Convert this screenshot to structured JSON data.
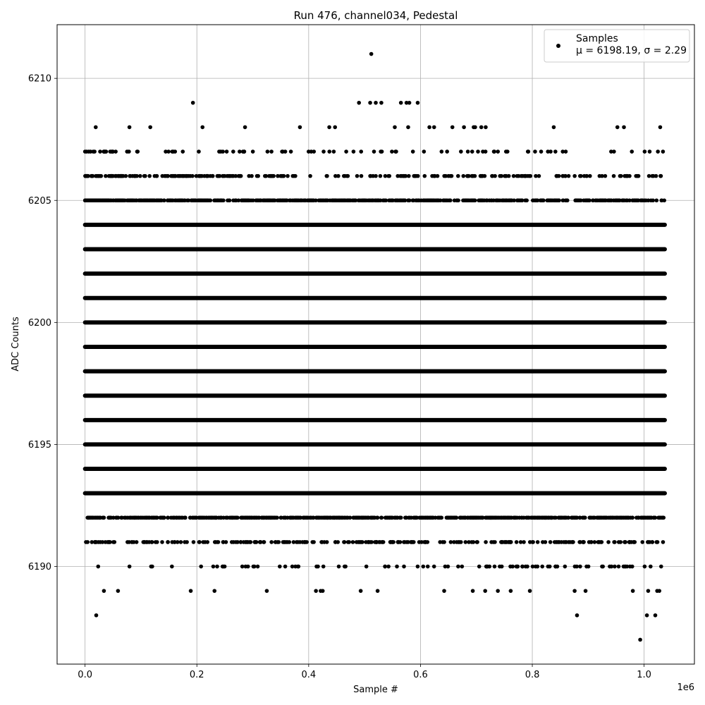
{
  "chart_data": {
    "type": "scatter",
    "title": "Run 476, channel034, Pedestal",
    "xlabel": "Sample #",
    "ylabel": "ADC Counts",
    "x_offset_label": "1e6",
    "xlim": [
      -0.05,
      1.09
    ],
    "ylim": [
      6186.0,
      6212.2
    ],
    "x_ticks": [
      0.0,
      0.2,
      0.4,
      0.6,
      0.8,
      1.0
    ],
    "x_tick_labels": [
      "0.0",
      "0.2",
      "0.4",
      "0.6",
      "0.8",
      "1.0"
    ],
    "y_ticks": [
      6190,
      6195,
      6200,
      6205,
      6210
    ],
    "y_tick_labels": [
      "6190",
      "6195",
      "6200",
      "6205",
      "6210"
    ],
    "grid": true,
    "legend": {
      "placement": "top-right",
      "entry": "Samples",
      "stats_prefix": "μ = 6198.19, ",
      "stats_suffix": "σ = 2.29"
    },
    "series": [
      {
        "marker": "dot",
        "color": "#000000",
        "x_range": [
          0.0,
          1.037
        ],
        "levels": [
          {
            "y": 6193,
            "density": "dense"
          },
          {
            "y": 6194,
            "density": "dense"
          },
          {
            "y": 6195,
            "density": "dense"
          },
          {
            "y": 6196,
            "density": "dense"
          },
          {
            "y": 6197,
            "density": "dense"
          },
          {
            "y": 6198,
            "density": "dense"
          },
          {
            "y": 6199,
            "density": "dense"
          },
          {
            "y": 6200,
            "density": "dense"
          },
          {
            "y": 6201,
            "density": "dense"
          },
          {
            "y": 6202,
            "density": "dense"
          },
          {
            "y": 6203,
            "density": "dense"
          },
          {
            "y": 6204,
            "density": "dense"
          },
          {
            "y": 6192,
            "density": "medium"
          },
          {
            "y": 6205,
            "density": "medium"
          },
          {
            "y": 6206,
            "density": "sparse"
          },
          {
            "y": 6191,
            "density": "sparse"
          },
          {
            "y": 6190,
            "density": "very-sparse"
          },
          {
            "y": 6207,
            "density": "very-sparse"
          },
          {
            "y": 6208,
            "density": "rare"
          },
          {
            "y": 6189,
            "density": "rare"
          }
        ],
        "outliers": [
          [
            0.02,
            6188
          ],
          [
            0.88,
            6188
          ],
          [
            1.005,
            6188
          ],
          [
            1.02,
            6188
          ],
          [
            0.993,
            6187
          ],
          [
            0.193,
            6209
          ],
          [
            0.49,
            6209
          ],
          [
            0.51,
            6209
          ],
          [
            0.52,
            6209
          ],
          [
            0.53,
            6209
          ],
          [
            0.565,
            6209
          ],
          [
            0.575,
            6209
          ],
          [
            0.58,
            6209
          ],
          [
            0.595,
            6209
          ],
          [
            0.512,
            6211
          ]
        ]
      }
    ]
  }
}
